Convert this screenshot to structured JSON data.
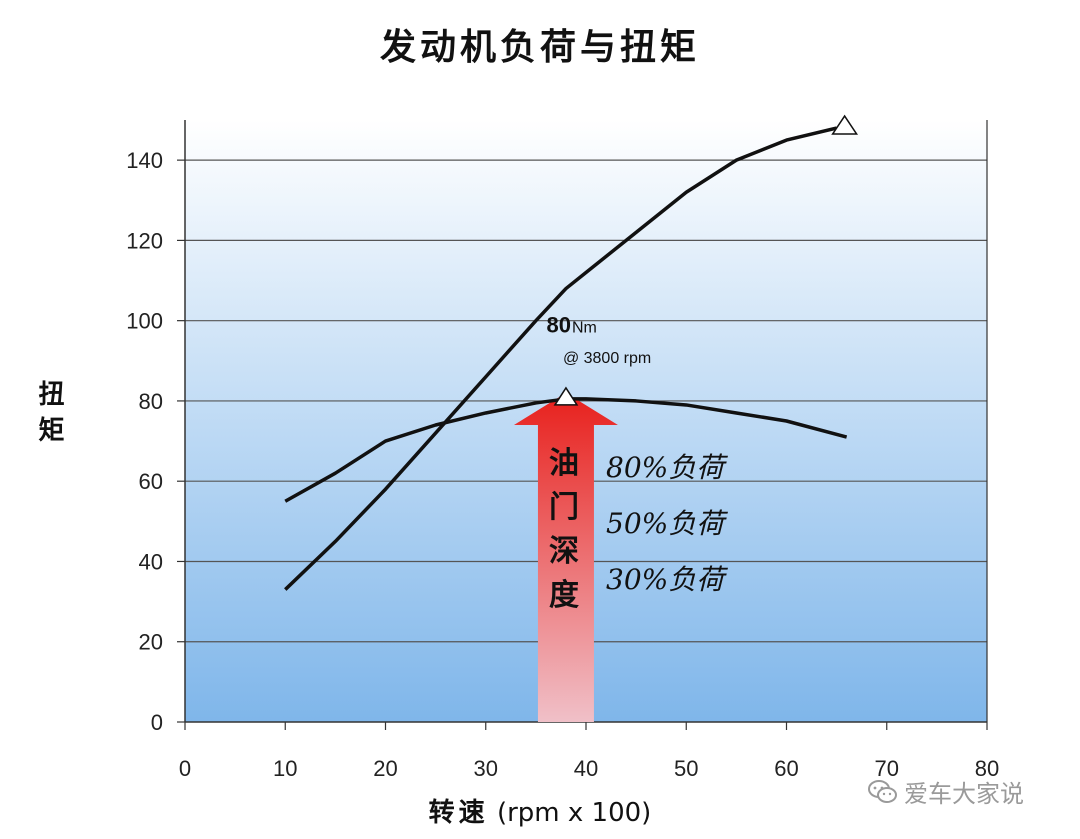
{
  "chart_data": {
    "type": "line",
    "title": "发动机负荷与扭矩",
    "ylabel": "扭矩",
    "xlabel_cn": "转速",
    "xlabel_unit": "(rpm x 100)",
    "xlim": [
      0,
      80
    ],
    "ylim": [
      0,
      150
    ],
    "xticks": [
      0,
      10,
      20,
      30,
      40,
      50,
      60,
      70,
      80
    ],
    "yticks": [
      0,
      20,
      40,
      60,
      80,
      100,
      120,
      140
    ],
    "grid": "horizontal",
    "series": [
      {
        "x": [
          10,
          15,
          20,
          25,
          30,
          35,
          38,
          40,
          45,
          50,
          55,
          60,
          65
        ],
        "values": [
          33,
          45,
          58,
          72,
          86,
          100,
          108,
          112,
          122,
          132,
          140,
          145,
          148
        ],
        "end_marker": "triangle"
      },
      {
        "x": [
          10,
          15,
          20,
          25,
          30,
          35,
          38,
          40,
          45,
          50,
          55,
          60,
          66
        ],
        "values": [
          55,
          62,
          70,
          74,
          77,
          79.5,
          80.5,
          80.5,
          80,
          79,
          77,
          75,
          71
        ],
        "peak_marker": {
          "x": 38,
          "y": 80.5
        }
      }
    ],
    "annotations": {
      "peak_value": "80",
      "peak_unit": "Nm",
      "peak_rpm": "@ 3800 rpm",
      "arrow_text": [
        "油",
        "门",
        "深",
        "度"
      ],
      "load_labels": [
        "80%负荷",
        "50%负荷",
        "30%负荷"
      ]
    },
    "colors": {
      "background_top": "#ffffff",
      "background_bottom": "#7fb6ea",
      "arrow_top": "#e8201c",
      "arrow_bottom": "#f0c0c8",
      "line": "#111111",
      "grid": "#555555"
    }
  },
  "watermark": {
    "icon": "wechat-icon",
    "text": "爱车大家说"
  }
}
